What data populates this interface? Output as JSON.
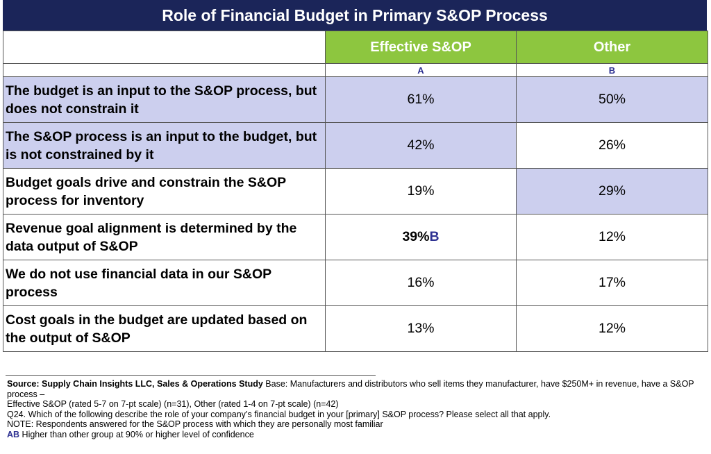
{
  "title": "Role of Financial Budget in Primary S&OP Process",
  "chart_data": {
    "type": "table",
    "columns": [
      {
        "name": "Effective S&OP",
        "letter": "A"
      },
      {
        "name": "Other",
        "letter": "B"
      }
    ],
    "rows": [
      {
        "label": "The budget is an input to the S&OP process, but does not constrain it",
        "values": [
          "61%",
          "50%"
        ],
        "sig": [
          "",
          ""
        ],
        "highlight": [
          true,
          true,
          true
        ]
      },
      {
        "label": "The S&OP process is an input to the budget, but is not constrained by it",
        "values": [
          "42%",
          "26%"
        ],
        "sig": [
          "",
          ""
        ],
        "highlight": [
          true,
          true,
          false
        ]
      },
      {
        "label": "Budget goals drive and constrain the S&OP process for inventory",
        "values": [
          "19%",
          "29%"
        ],
        "sig": [
          "",
          ""
        ],
        "highlight": [
          false,
          false,
          true
        ]
      },
      {
        "label": "Revenue goal alignment is determined by the data output of S&OP",
        "values": [
          "39%",
          "12%"
        ],
        "sig": [
          "B",
          ""
        ],
        "highlight": [
          false,
          false,
          false
        ]
      },
      {
        "label": "We do not use financial data in our S&OP process",
        "values": [
          "16%",
          "17%"
        ],
        "sig": [
          "",
          ""
        ],
        "highlight": [
          false,
          false,
          false
        ]
      },
      {
        "label": "Cost goals in the budget are updated based on the output of S&OP",
        "values": [
          "13%",
          "12%"
        ],
        "sig": [
          "",
          ""
        ],
        "highlight": [
          false,
          false,
          false
        ]
      }
    ]
  },
  "colors": {
    "title_bg": "#1b2559",
    "header_green": "#8dc63f",
    "highlight": "#cccfee",
    "sig_blue": "#2e3192"
  },
  "notes": {
    "source_bold": "Source:  Supply Chain Insights LLC, Sales & Operations Study",
    "source_rest": " Base: Manufacturers and distributors who sell items they manufacturer, have $250M+ in revenue, have a S&OP process –",
    "groups": "Effective S&OP (rated 5-7 on 7-pt scale) (n=31), Other (rated 1-4 on 7-pt scale) (n=42)",
    "question": "Q24. Which of the following describe the role of your company’s financial budget in your [primary] S&OP process? Please select all that apply.",
    "note": "NOTE: Respondents answered for the S&OP process with which they are personally most familiar",
    "legend_code": "AB",
    "legend_text": " Higher than other group at 90% or higher level of confidence"
  }
}
